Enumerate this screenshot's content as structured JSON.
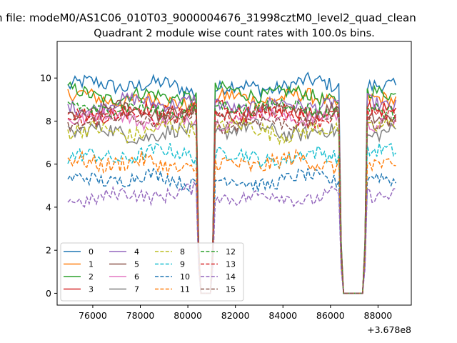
{
  "chart_data": {
    "type": "line",
    "suptitle": "n file: modeM0/AS1C06_010T03_9000004676_31998cztM0_level2_quad_clean",
    "title": "Quadrant 2 module wise count rates with 100.0s bins.",
    "xlabel": "",
    "ylabel": "",
    "offset_text": "+3.678e8",
    "xlim": [
      74500,
      89400
    ],
    "ylim": [
      -0.55,
      11.7
    ],
    "x_ticks": [
      76000,
      78000,
      80000,
      82000,
      84000,
      86000,
      88000
    ],
    "x_tick_labels": [
      "76000",
      "78000",
      "80000",
      "82000",
      "84000",
      "86000",
      "88000"
    ],
    "y_ticks": [
      0,
      2,
      4,
      6,
      8,
      10
    ],
    "y_tick_labels": [
      "0",
      "2",
      "4",
      "6",
      "8",
      "10"
    ],
    "x_start": 74950,
    "x_step": 100,
    "gaps": [
      {
        "edges": [
          80450,
          81050
        ],
        "floor": [
          80550,
          80950
        ]
      },
      {
        "edges": [
          86450,
          87450
        ],
        "floor": [
          86550,
          87350
        ]
      }
    ],
    "x_end": 88750,
    "grid": false,
    "legend_position": "lower-left",
    "series": [
      {
        "name": "0",
        "color": "#1f77b4",
        "dash": "solid",
        "level": 9.6,
        "spread": 0.22
      },
      {
        "name": "1",
        "color": "#ff7f0e",
        "dash": "solid",
        "level": 9.0,
        "spread": 0.22
      },
      {
        "name": "2",
        "color": "#2ca02c",
        "dash": "solid",
        "level": 9.25,
        "spread": 0.2
      },
      {
        "name": "3",
        "color": "#d62728",
        "dash": "solid",
        "level": 8.5,
        "spread": 0.22
      },
      {
        "name": "4",
        "color": "#9467bd",
        "dash": "solid",
        "level": 8.8,
        "spread": 0.2
      },
      {
        "name": "5",
        "color": "#8c564b",
        "dash": "solid",
        "level": 8.4,
        "spread": 0.2
      },
      {
        "name": "6",
        "color": "#e377c2",
        "dash": "solid",
        "level": 8.1,
        "spread": 0.2
      },
      {
        "name": "7",
        "color": "#7f7f7f",
        "dash": "solid",
        "level": 7.5,
        "spread": 0.22
      },
      {
        "name": "8",
        "color": "#bcbd22",
        "dash": "dashed",
        "level": 7.6,
        "spread": 0.25
      },
      {
        "name": "9",
        "color": "#17becf",
        "dash": "dashed",
        "level": 6.4,
        "spread": 0.22
      },
      {
        "name": "10",
        "color": "#1f77b4",
        "dash": "dashed",
        "level": 5.25,
        "spread": 0.2
      },
      {
        "name": "11",
        "color": "#ff7f0e",
        "dash": "dashed",
        "level": 6.0,
        "spread": 0.25
      },
      {
        "name": "12",
        "color": "#2ca02c",
        "dash": "dashed",
        "level": 8.6,
        "spread": 0.2
      },
      {
        "name": "13",
        "color": "#d62728",
        "dash": "dashed",
        "level": 8.3,
        "spread": 0.22
      },
      {
        "name": "14",
        "color": "#9467bd",
        "dash": "dashed",
        "level": 4.55,
        "spread": 0.2
      },
      {
        "name": "15",
        "color": "#8c564b",
        "dash": "dashed",
        "level": 8.0,
        "spread": 0.2
      }
    ]
  }
}
